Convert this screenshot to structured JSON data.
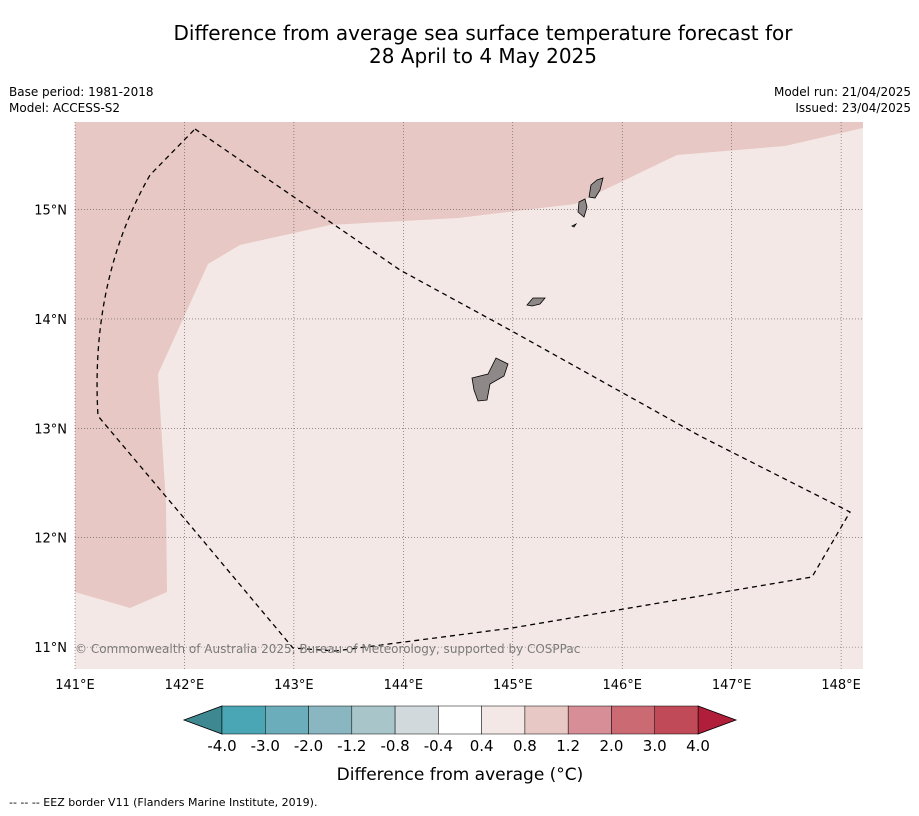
{
  "title_line1": "Difference from average sea surface temperature forecast for",
  "title_line2": "28 April to 4 May 2025",
  "meta_left": {
    "base_period": "Base period: 1981-2018",
    "model": "Model: ACCESS-S2"
  },
  "meta_right": {
    "model_run": "Model run: 21/04/2025",
    "issued": "Issued: 23/04/2025"
  },
  "map": {
    "lon_range": [
      141.0,
      148.2
    ],
    "lat_range": [
      10.8,
      15.8
    ],
    "lon_ticks": [
      {
        "value": 141,
        "label": "141°E"
      },
      {
        "value": 142,
        "label": "142°E"
      },
      {
        "value": 143,
        "label": "143°E"
      },
      {
        "value": 144,
        "label": "144°E"
      },
      {
        "value": 145,
        "label": "145°E"
      },
      {
        "value": 146,
        "label": "146°E"
      },
      {
        "value": 147,
        "label": "147°E"
      },
      {
        "value": 148,
        "label": "148°E"
      }
    ],
    "lat_ticks": [
      {
        "value": 11,
        "label": "11°N"
      },
      {
        "value": 12,
        "label": "12°N"
      },
      {
        "value": 13,
        "label": "13°N"
      },
      {
        "value": 14,
        "label": "14°N"
      },
      {
        "value": 15,
        "label": "15°N"
      }
    ],
    "background_class_color": "#f4e8e6",
    "warm_region_color": "#e8c8c4",
    "land_color": "#8f8888",
    "copyright": "© Commonwealth of Australia 2025, Bureau of Meteorology, supported by COSPPac"
  },
  "colorbar": {
    "label": "Difference from average (°C)",
    "tick_labels": [
      "-4.0",
      "-3.0",
      "-2.0",
      "-1.2",
      "-0.8",
      "-0.4",
      "0.4",
      "0.8",
      "1.2",
      "2.0",
      "3.0",
      "4.0"
    ],
    "segment_colors": [
      "#4aa6b4",
      "#6cadbb",
      "#8ab6c1",
      "#a8c5ca",
      "#d1d9dc",
      "#ffffff",
      "#f4e8e6",
      "#e8c8c4",
      "#d78e97",
      "#cc6a74",
      "#c04a58"
    ],
    "low_extend_color": "#3e8892",
    "high_extend_color": "#b11e3a"
  },
  "footnote": "--  --  -- EEZ border V11 (Flanders Marine Institute, 2019)."
}
